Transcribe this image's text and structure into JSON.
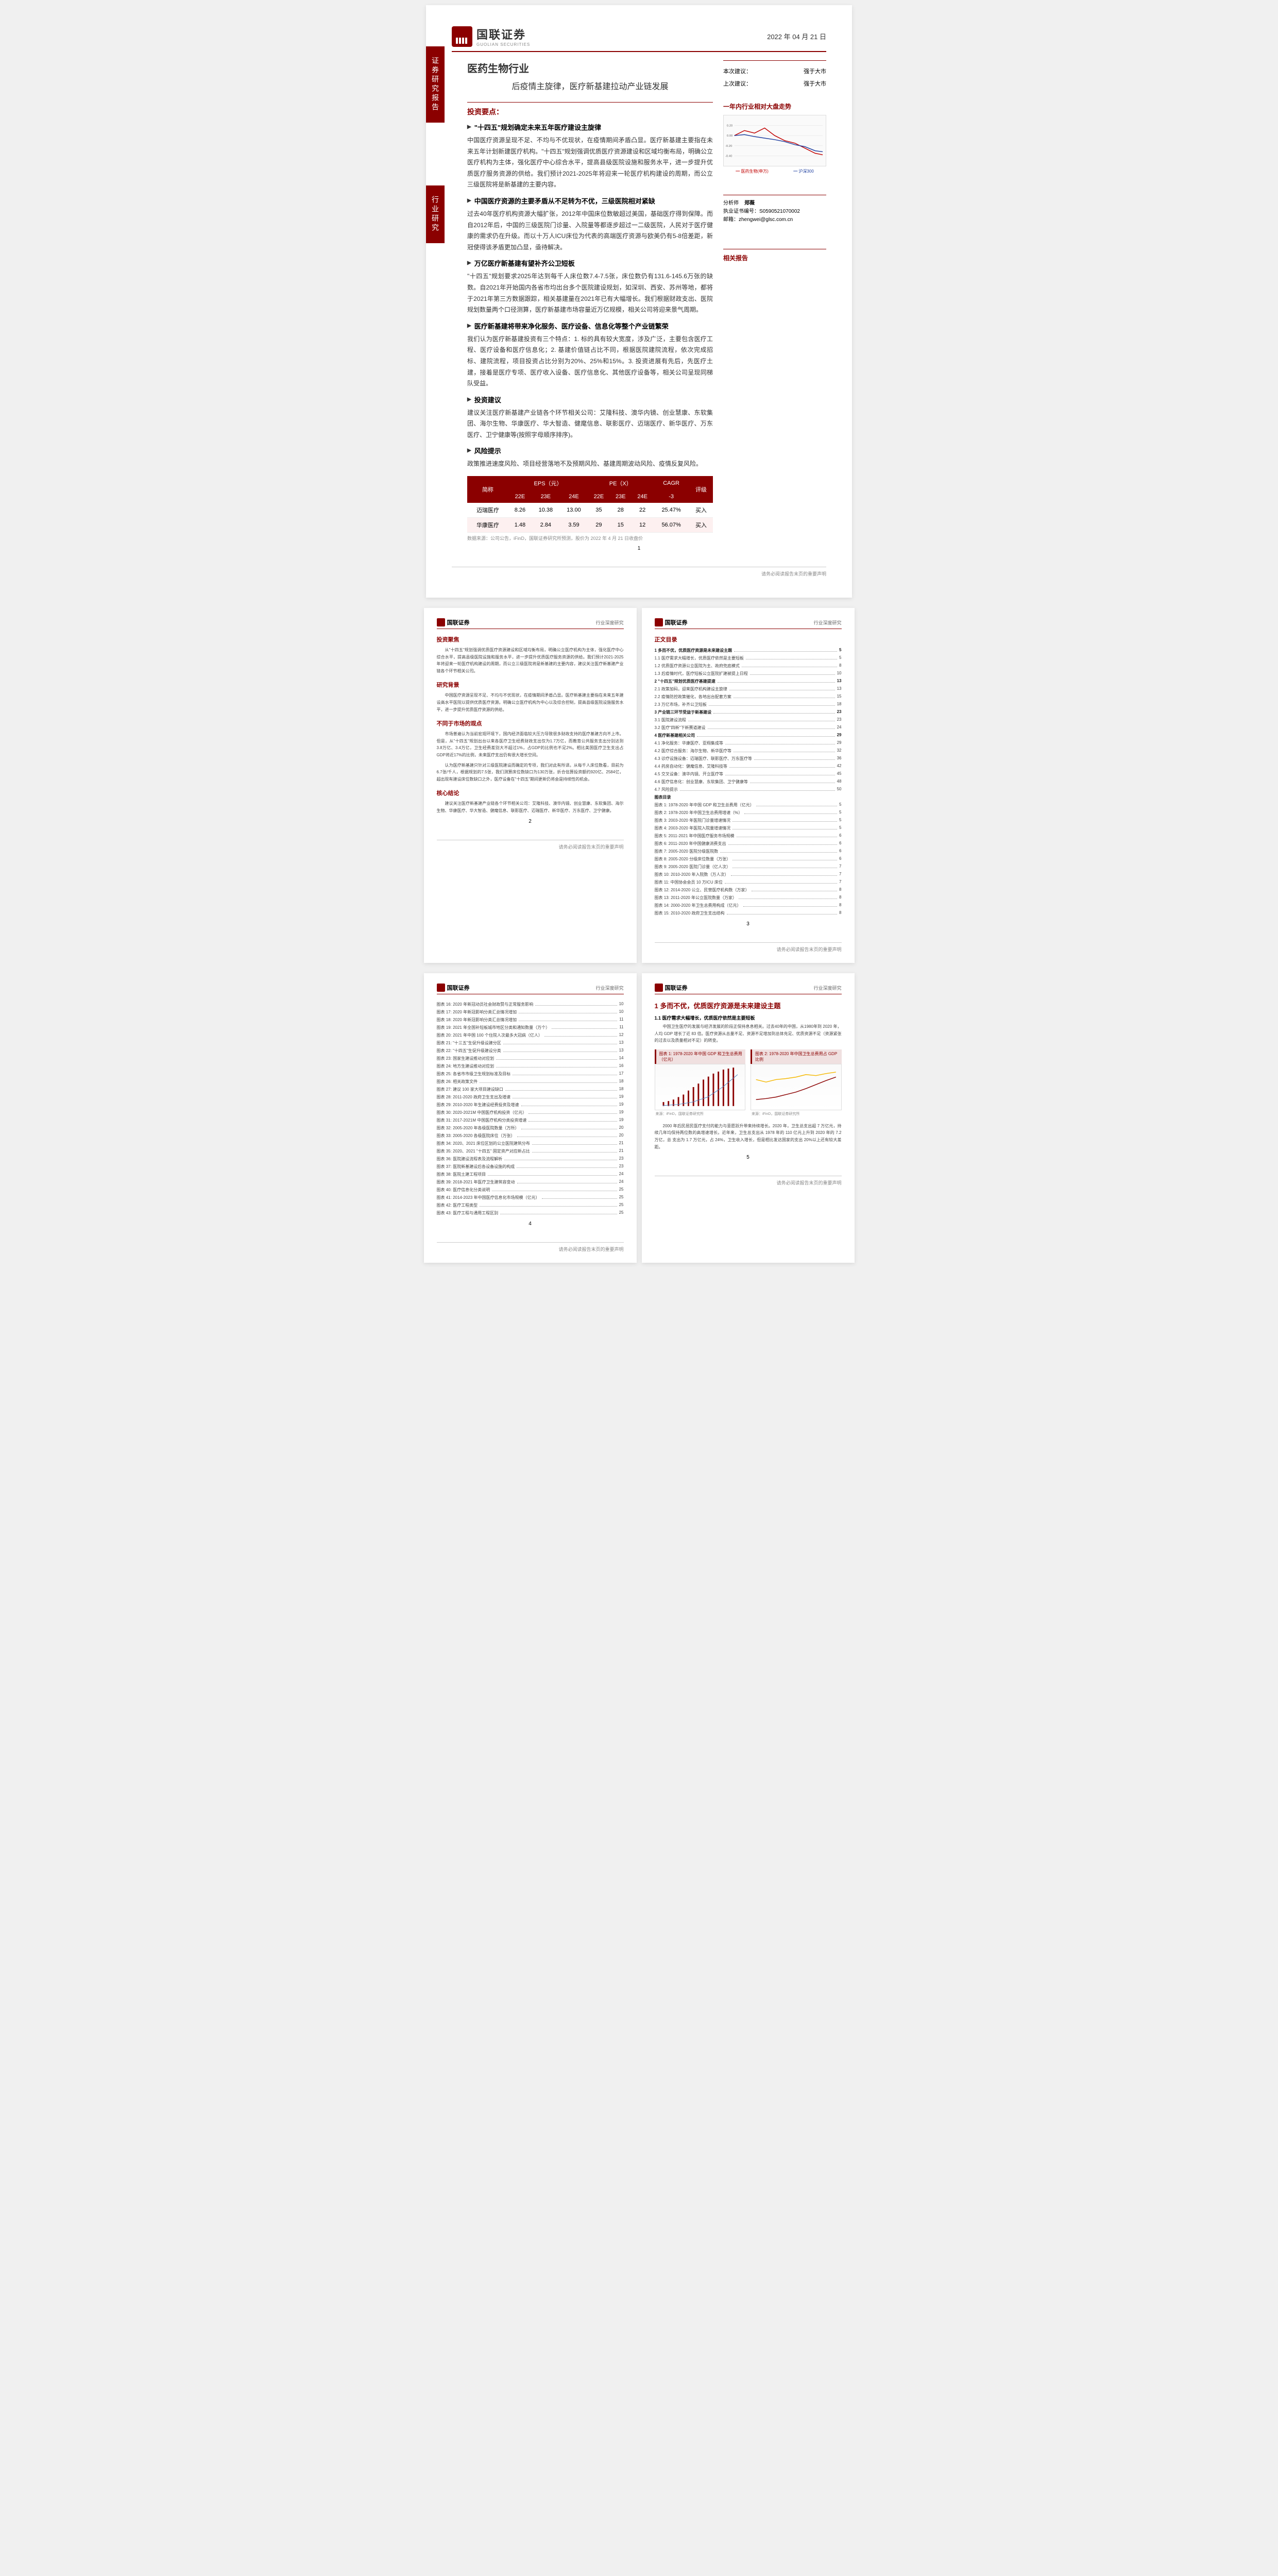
{
  "report_date": "2022 年 04 月 21 日",
  "company": "国联证券",
  "company_en": "GUOLIAN SECURITIES",
  "side_tab_1": "证券研究报告",
  "side_tab_2": "行业研究",
  "industry": "医药生物行业",
  "main_title": "后疫情主旋律，医疗新基建拉动产业链发展",
  "rating_box": {
    "label_this": "本次建议：",
    "value_this": "强于大市",
    "label_last": "上次建议：",
    "value_last": "强于大市"
  },
  "chart_title": "一年内行业相对大盘走势",
  "chart_legend_1": "医药生物(申万)",
  "chart_legend_2": "沪深300",
  "chart_x_labels": [
    "21-04",
    "21-06",
    "21-08",
    "21-10",
    "21-12",
    "22-02",
    "22-04"
  ],
  "chart_y_labels": [
    "0.20",
    "0.00",
    "-0.20",
    "-0.40"
  ],
  "analyst": {
    "title": "分析师",
    "name": "郑薇",
    "license_label": "执业证书编号：",
    "license": "S0590521070002",
    "email_label": "邮箱：",
    "email": "zhengwei@glsc.com.cn"
  },
  "related_title": "相关报告",
  "invest_head": "投资要点：",
  "sections": [
    {
      "h": "\"十四五\"规划确定未来五年医疗建设主旋律",
      "t": "中国医疗资源呈现不足、不均与不优现状，在疫情期间矛盾凸显。医疗新基建主要指在未来五年计划新建医疗机构。\"十四五\"规划强调优质医疗资源建设和区域均衡布局，明确公立医疗机构为主体，强化医疗中心综合水平，提高县级医院设施和服务水平，进一步提升优质医疗服务资源的供给。我们预计2021-2025年将迎来一轮医疗机构建设的周期，而公立三级医院将是新基建的主要内容。"
    },
    {
      "h": "中国医疗资源的主要矛盾从不足转为不优，三级医院相对紧缺",
      "t": "过去40年医疗机构资源大幅扩张，2012年中国床位数敏超过美国，基础医疗得到保障。而自2012年后，中国的三级医院门诊量、入院量等都逐步超过一二级医院，人民对于医疗健康的需求仍在升级。而以十万人ICU床位为代表的高端医疗资源与欧美仍有5-8倍差距，新冠使得该矛盾更加凸显，亟待解决。"
    },
    {
      "h": "万亿医疗新基建有望补齐公卫短板",
      "t": "\"十四五\"规划要求2025年达到每千人床位数7.4-7.5张，床位数仍有131.6-145.6万张的缺数。自2021年开始国内各省市均出台多个医院建设规划，如深圳、西安、苏州等地，都将于2021年第三方数据跟踪，相关基建量在2021年已有大幅增长。我们根据财政支出、医院规划数量两个口径测算，医疗新基建市场容量近万亿规模，相关公司将迎来景气周期。"
    },
    {
      "h": "医疗新基建将带来净化服务、医疗设备、信息化等整个产业链繁荣",
      "t": "我们认为医疗新基建投资有三个特点：1. 标的具有较大宽度，涉及广泛，主要包含医疗工程、医疗设备和医疗信息化；2. 基建价值链占比不同，根据医院建院流程，依次完成招标、建院流程，项目投资占比分别为20%、25%和15%。3. 投资进展有先后，先医疗土建，接着是医疗专项、医疗收入设备、医疗信息化、其他医疗设备等，相关公司呈现同梯队受益。"
    },
    {
      "h": "投资建议",
      "t": "建议关注医疗新基建产业链各个环节相关公司：艾隆科技、澳华内镜、创业慧康、东软集团、海尔生物、华康医疗、华大智造、健麾信息、联影医疗、迈瑞医疗、新华医疗、万东医疗、卫宁健康等(按照字母顺序排序)。"
    },
    {
      "h": "风险提示",
      "t": "政策推进速度风险、项目经营落地不及预期风险、基建周期波动风险、疫情反复风险。"
    }
  ],
  "table": {
    "headers": [
      "简称",
      "EPS（元）",
      "",
      "",
      "PE（X）",
      "",
      "",
      "CAGR",
      "评级"
    ],
    "subheaders": [
      "",
      "22E",
      "23E",
      "24E",
      "22E",
      "23E",
      "24E",
      "-3",
      ""
    ],
    "rows": [
      [
        "迈瑞医疗",
        "8.26",
        "10.38",
        "13.00",
        "35",
        "28",
        "22",
        "25.47%",
        "买入"
      ],
      [
        "华康医疗",
        "1.48",
        "2.84",
        "3.59",
        "29",
        "15",
        "12",
        "56.07%",
        "买入"
      ]
    ],
    "note": "数据来源：公司公告，iFinD，国联证券研究所预测，股价为 2022 年 4 月 21 日收盘价"
  },
  "footer": "请务必阅读报告末页的重要声明",
  "page2": {
    "header_right": "行业深度研究",
    "s1": "投资聚焦",
    "s1_text": "从\"十四五\"规划强调优质医疗资源建设和区域均衡布局，明确公立医疗机构为主体，强化医疗中心综合水平，提高县级医院设施和服务水平，进一步提升优质医疗服务资源的供给。我们预计2021-2025年将迎来一轮医疗机构建设的周期，而公立三级医院将是新基建的主要内容，建议关注医疗新基建产业链各个环节相关公司。",
    "s2": "研究背景",
    "s2_text": "中国医疗资源呈现不足、不均与不优现状，在疫情期间矛盾凸显。医疗新基建主要指在未来五年建设高水平医院以提供优质医疗资源。明确公立医疗机构为中心以及综合控制，提高县级医院设施服务水平，进一步提升优质医疗资源的供给。",
    "s3": "不同于市场的观点",
    "s3_text1": "市场普遍认为当前宏观环境下，国内经济面临较大压力导致很多财政支持的医疗基建方向不上市。但是，从\"十四五\"规划出台以来各医疗卫生经费财政支出仅为1.7万亿，而教育公共服务支出分别达到3.8万亿、3.4万亿，卫生经费差别大不超过1%，占GDP的比例也不足2%。相比美国医疗卫生支出占GDP将近17%的比例，未来医疗支出仍有很大增长空间。",
    "s3_text2": "认为医疗新基建只针对三级医院建设而确定的专项，我们对此有所译。从每千人床位数看，目前为6.7张/千人，根据规划的7.5张，我们测算床位数缺口为130万张，折合估算投资额约920亿、2584亿，超出现有建设床位数缺口之外，医疗设备在\"十四五\"期间更新仍将会是持续性的机会。",
    "s4": "核心结论",
    "s4_text": "建议关注医疗新基建产业链各个环节相关公司：艾隆科技、澳华内镜、创业慧康、东软集团、海尔生物、华康医疗、华大智造、健麾信息、联影医疗、迈瑞医疗、新华医疗、万东医疗、卫宁健康。"
  },
  "page3": {
    "s1": "正文目录",
    "toc": [
      {
        "t": "1 多而不优，优质医疗资源是未来建设主题",
        "p": "5",
        "bold": true
      },
      {
        "t": "1.1 医疗需求大幅增长，优质医疗依然是主要短板",
        "p": "5"
      },
      {
        "t": "1.2 优质医疗资源公立医院为主、政府兜底模式",
        "p": "8"
      },
      {
        "t": "1.3 后疫情时代，医疗短板公立医院扩建被提上日程",
        "p": "10"
      },
      {
        "t": "2 \"十四五\"规划优质医疗基建提速",
        "p": "13",
        "bold": true
      },
      {
        "t": "2.1 政策加码，迎来医疗机构建设主旋律",
        "p": "13"
      },
      {
        "t": "2.2 疫情防控政策催化，各地出台配套方案",
        "p": "15"
      },
      {
        "t": "2.3 万亿市场，补齐公卫短板",
        "p": "18"
      },
      {
        "t": "3 产业链三环节受益于新基建设",
        "p": "23",
        "bold": true
      },
      {
        "t": "3.1 医院建设流程",
        "p": "23"
      },
      {
        "t": "3.2 医疗\"四新\"下新赛道建设",
        "p": "24"
      },
      {
        "t": "4 医疗新基建相关公司",
        "p": "29",
        "bold": true
      },
      {
        "t": "4.1 净化服务：华康医疗、亚翔集成等",
        "p": "29"
      },
      {
        "t": "4.2 医疗综合服务：海尔生物、新华医疗等",
        "p": "32"
      },
      {
        "t": "4.3 诊疗设施设备：迈瑞医疗、联影医疗、万东医疗等",
        "p": "36"
      },
      {
        "t": "4.4 药房自动化：健麾信息、艾隆科技等",
        "p": "42"
      },
      {
        "t": "4.5 交叉设备：澳华内镜、开立医疗等",
        "p": "45"
      },
      {
        "t": "4.6 医疗信息化：创业慧康、东软集团、卫宁健康等",
        "p": "48"
      },
      {
        "t": "4.7 风险提示",
        "p": "50"
      },
      {
        "t": "图表目录",
        "p": "",
        "bold": true
      },
      {
        "t": "图表 1: 1978-2020 年中国 GDP 和卫生总费用（亿元）",
        "p": "5"
      },
      {
        "t": "图表 2: 1978-2020 年中国卫生总费用增速（%）",
        "p": "5"
      },
      {
        "t": "图表 3: 2003-2020 年医院门诊量增速情况",
        "p": "5"
      },
      {
        "t": "图表 4: 2003-2020 年医院入院量增速情况",
        "p": "5"
      },
      {
        "t": "图表 5: 2011-2021 年中国医疗服务市场规模",
        "p": "6"
      },
      {
        "t": "图表 6: 2011-2020 年中国健康消费支出",
        "p": "6"
      },
      {
        "t": "图表 7: 2005-2020 医院分级医院数",
        "p": "6"
      },
      {
        "t": "图表 8: 2005-2020 分级床位数量（万张）",
        "p": "6"
      },
      {
        "t": "图表 9: 2005-2020 医院门诊量（亿人次）",
        "p": "7"
      },
      {
        "t": "图表 10: 2010-2020 年入院数（万人次）",
        "p": "7"
      },
      {
        "t": "图表 11: 中国协会会员 10 万ICU 床位",
        "p": "7"
      },
      {
        "t": "图表 12: 2014-2020 公立、民营医疗机构数（万家）",
        "p": "8"
      },
      {
        "t": "图表 13: 2011-2020 年公立医院数量（万家）",
        "p": "8"
      },
      {
        "t": "图表 14: 2000-2020 年卫生总费用构成（亿元）",
        "p": "8"
      },
      {
        "t": "图表 15: 2010-2020 政府卫生支出结构",
        "p": "8"
      }
    ]
  },
  "page4": {
    "toc": [
      {
        "t": "图表 16: 2020 年新冠动员社会财政赞与正常服务影响",
        "p": "10"
      },
      {
        "t": "图表 17: 2020 年新冠影响分类汇总情况增加",
        "p": "10"
      },
      {
        "t": "图表 18: 2020 年新冠影响分类汇总情况增加",
        "p": "11"
      },
      {
        "t": "图表 19: 2021 年全国补短板城市地区分类和通知数量（万个）",
        "p": "11"
      },
      {
        "t": "图表 20: 2021 年中国 100 个住院人次最多大冠病（亿人）",
        "p": "12"
      },
      {
        "t": "图表 21: \"十三五\"生促升级设建分区",
        "p": "13"
      },
      {
        "t": "图表 22: \"十四五\"生促升级建设分类",
        "p": "13"
      },
      {
        "t": "图表 23: 国家生建设推动对应划",
        "p": "14"
      },
      {
        "t": "图表 24: 地方生建设推动对应划",
        "p": "16"
      },
      {
        "t": "图表 25: 各省市市级卫生规划标准及目标",
        "p": "17"
      },
      {
        "t": "图表 26: 相关政策文件",
        "p": "18"
      },
      {
        "t": "图表 27: 建议 100 家大项目建设缺口",
        "p": "18"
      },
      {
        "t": "图表 28: 2011-2020 政府卫生支出及增速",
        "p": "19"
      },
      {
        "t": "图表 29: 2010-2020 年生建设经费投资及增速",
        "p": "19"
      },
      {
        "t": "图表 30: 2020-2021M 中国医疗机构投资（亿元）",
        "p": "19"
      },
      {
        "t": "图表 31: 2017-2021M 中国医疗机构分类投资增速",
        "p": "19"
      },
      {
        "t": "图表 32: 2005-2020 年各级医院数量（万所）",
        "p": "20"
      },
      {
        "t": "图表 33: 2005-2020 各级医院床位（万张）",
        "p": "20"
      },
      {
        "t": "图表 34: 2020、2021 床位区划的公立医院建筑分布",
        "p": "21"
      },
      {
        "t": "图表 35: 2020、2021 \"十四五\" 固定资产对应新占比",
        "p": "21"
      },
      {
        "t": "图表 36: 医院建设流程表及流程解析",
        "p": "23"
      },
      {
        "t": "图表 37: 医院新基建设后各设备设施的构成",
        "p": "23"
      },
      {
        "t": "图表 38: 医院土建工程项目",
        "p": "24"
      },
      {
        "t": "图表 39: 2018-2021 年医疗卫生建筑容变动",
        "p": "24"
      },
      {
        "t": "图表 40: 医疗信息化分类说明",
        "p": "25"
      },
      {
        "t": "图表 41: 2014-2023 年中国医疗信息化市场规模（亿元）",
        "p": "25"
      },
      {
        "t": "图表 42: 医疗工程类型",
        "p": "25"
      },
      {
        "t": "图表 43: 医疗工程与通用工程区别",
        "p": "25"
      }
    ]
  },
  "page5": {
    "h1": "1 多而不优，优质医疗资源是未来建设主题",
    "h2": "1.1 医疗需求大幅增长，优质医疗依然是主要短板",
    "p1": "中国卫生医疗的发展与经济发展的阶段正保持息息相关。过去40年的中国，从1980年到 2020 年，人均 GDP 增长了近 83 倍。医疗资源从总量不足、资源不足增加到总体充足、优质资源不足（资源紧张的过去以及质量相对不足）的转变。",
    "fig1_title": "图表 1: 1978-2020 年中国 GDP 和卫生总费用（亿元）",
    "fig2_title": "图表 2: 1978-2020 年中国卫生总费用占 GDP 比例",
    "fig_source": "来源：iFinD，国联证券研究所",
    "p2": "2000 年后民居民医疗支付的能力与意愿跃升带来持续增长。2020 年，卫生总支出超 7 万亿元，持续几年均保持两位数的高增速增长。近年来，卫生总支出从 1978 年的 110 亿元上升到 2020 年的 7.2 万亿，总 支出为 1.7 万亿元，占 24%，卫生收入增长，但是相比发达国家的支出 20%以上还有较大差距。",
    "chart1": {
      "type": "combo",
      "x": [
        "1978",
        "1984",
        "1990",
        "1996",
        "2002",
        "2008",
        "2014",
        "2020"
      ],
      "series1_color": "#8b0000",
      "series2_color": "#c0504d",
      "line_color": "#4f81bd",
      "y_max": 100000,
      "y2_max": 8
    },
    "chart2": {
      "type": "line",
      "x": [
        "1978",
        "1984",
        "1990",
        "1996",
        "2002",
        "2008",
        "2014",
        "2020"
      ],
      "line1_color": "#8b0000",
      "line2_color": "#f5b800",
      "y_min": 0,
      "y_max": 120
    }
  }
}
